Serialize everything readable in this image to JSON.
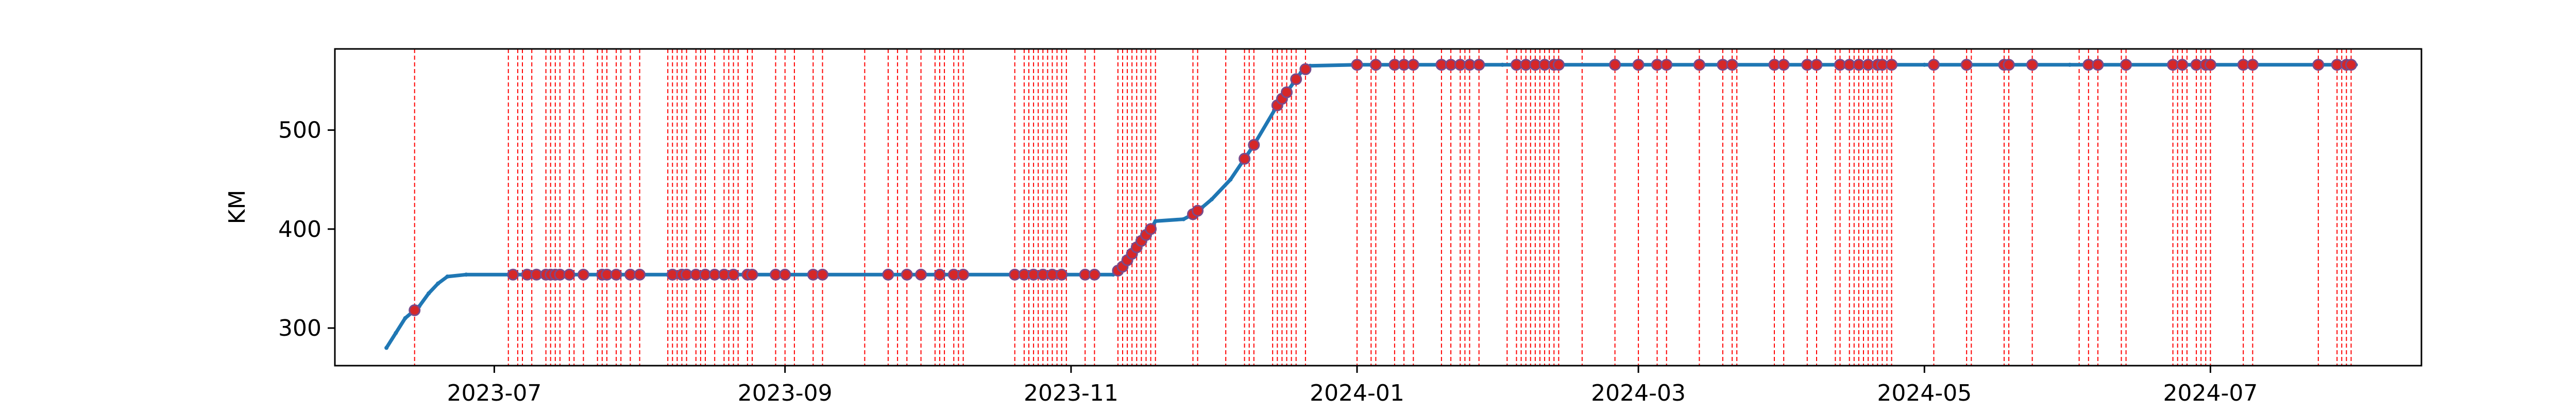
{
  "chart_data": {
    "type": "line",
    "title": "",
    "xlabel": "",
    "ylabel": "KM",
    "x_axis_type": "date",
    "xlim": [
      "2023-05-28",
      "2024-08-15"
    ],
    "ylim": [
      262,
      582
    ],
    "x_ticks": [
      {
        "date": "2023-07-01",
        "label": "2023-07"
      },
      {
        "date": "2023-09-01",
        "label": "2023-09"
      },
      {
        "date": "2023-11-01",
        "label": "2023-11"
      },
      {
        "date": "2024-01-01",
        "label": "2024-01"
      },
      {
        "date": "2024-03-01",
        "label": "2024-03"
      },
      {
        "date": "2024-05-01",
        "label": "2024-05"
      },
      {
        "date": "2024-07-01",
        "label": "2024-07"
      }
    ],
    "y_ticks": [
      300,
      400,
      500
    ],
    "grid": false,
    "colors": {
      "line": "#1f77b4",
      "marker": "#d62728",
      "vline": "#ff0000",
      "marker_edge": "#7a4a8a"
    },
    "series": [
      {
        "x": [
          "2023-06-08",
          "2023-06-10",
          "2023-06-12",
          "2023-06-15",
          "2023-06-17",
          "2023-06-19",
          "2023-06-21",
          "2023-06-25",
          "2023-07-05",
          "2023-08-01",
          "2023-09-01",
          "2023-10-01",
          "2023-10-25",
          "2023-11-10",
          "2023-11-12",
          "2023-11-14",
          "2023-11-16",
          "2023-11-18",
          "2023-11-19",
          "2023-11-25",
          "2023-11-27",
          "2023-11-29",
          "2023-12-01",
          "2023-12-05",
          "2023-12-10",
          "2023-12-15",
          "2023-12-20",
          "2023-12-22",
          "2024-01-01",
          "2024-02-01",
          "2024-03-01",
          "2024-04-01",
          "2024-05-01",
          "2024-06-01",
          "2024-07-01",
          "2024-08-01"
        ],
        "y": [
          280,
          295,
          310,
          322,
          335,
          345,
          352,
          354,
          354,
          354,
          354,
          354,
          354,
          354,
          362,
          375,
          388,
          400,
          408,
          410,
          415,
          422,
          430,
          450,
          485,
          525,
          558,
          565,
          566,
          566,
          566,
          566,
          566,
          566,
          566,
          566
        ]
      }
    ],
    "event_dates": [
      "2023-06-14",
      "2023-07-04",
      "2023-07-06",
      "2023-07-07",
      "2023-07-09",
      "2023-07-12",
      "2023-07-13",
      "2023-07-14",
      "2023-07-15",
      "2023-07-17",
      "2023-07-18",
      "2023-07-20",
      "2023-07-23",
      "2023-07-24",
      "2023-07-25",
      "2023-07-27",
      "2023-07-28",
      "2023-07-30",
      "2023-08-01",
      "2023-08-07",
      "2023-08-08",
      "2023-08-09",
      "2023-08-10",
      "2023-08-11",
      "2023-08-13",
      "2023-08-14",
      "2023-08-15",
      "2023-08-17",
      "2023-08-19",
      "2023-08-20",
      "2023-08-21",
      "2023-08-22",
      "2023-08-24",
      "2023-08-25",
      "2023-08-30",
      "2023-09-01",
      "2023-09-03",
      "2023-09-07",
      "2023-09-09",
      "2023-09-18",
      "2023-09-23",
      "2023-09-25",
      "2023-09-27",
      "2023-09-30",
      "2023-10-03",
      "2023-10-04",
      "2023-10-05",
      "2023-10-07",
      "2023-10-08",
      "2023-10-09",
      "2023-10-20",
      "2023-10-22",
      "2023-10-23",
      "2023-10-24",
      "2023-10-25",
      "2023-10-26",
      "2023-10-27",
      "2023-10-28",
      "2023-10-29",
      "2023-10-30",
      "2023-10-31",
      "2023-11-04",
      "2023-11-06",
      "2023-11-11",
      "2023-11-12",
      "2023-11-13",
      "2023-11-14",
      "2023-11-15",
      "2023-11-16",
      "2023-11-17",
      "2023-11-18",
      "2023-11-19",
      "2023-11-27",
      "2023-11-28",
      "2023-12-04",
      "2023-12-08",
      "2023-12-09",
      "2023-12-10",
      "2023-12-14",
      "2023-12-15",
      "2023-12-16",
      "2023-12-17",
      "2023-12-18",
      "2023-12-19",
      "2023-12-21",
      "2024-01-01",
      "2024-01-04",
      "2024-01-05",
      "2024-01-09",
      "2024-01-11",
      "2024-01-13",
      "2024-01-19",
      "2024-01-21",
      "2024-01-23",
      "2024-01-24",
      "2024-01-25",
      "2024-01-27",
      "2024-02-02",
      "2024-02-04",
      "2024-02-05",
      "2024-02-06",
      "2024-02-07",
      "2024-02-08",
      "2024-02-09",
      "2024-02-10",
      "2024-02-11",
      "2024-02-12",
      "2024-02-13",
      "2024-02-18",
      "2024-02-25",
      "2024-03-01",
      "2024-03-05",
      "2024-03-07",
      "2024-03-14",
      "2024-03-19",
      "2024-03-21",
      "2024-03-22",
      "2024-03-30",
      "2024-04-01",
      "2024-04-06",
      "2024-04-08",
      "2024-04-12",
      "2024-04-13",
      "2024-04-15",
      "2024-04-16",
      "2024-04-17",
      "2024-04-18",
      "2024-04-19",
      "2024-04-20",
      "2024-04-21",
      "2024-04-22",
      "2024-04-23",
      "2024-04-24",
      "2024-05-03",
      "2024-05-10",
      "2024-05-11",
      "2024-05-18",
      "2024-05-19",
      "2024-05-24",
      "2024-06-03",
      "2024-06-05",
      "2024-06-07",
      "2024-06-12",
      "2024-06-13",
      "2024-06-23",
      "2024-06-24",
      "2024-06-25",
      "2024-06-26",
      "2024-06-28",
      "2024-06-29",
      "2024-06-30",
      "2024-07-01",
      "2024-07-08",
      "2024-07-10",
      "2024-07-24",
      "2024-07-28",
      "2024-07-29",
      "2024-07-30",
      "2024-07-31"
    ],
    "marker_dates": [
      "2023-06-14",
      "2023-07-05",
      "2023-07-08",
      "2023-07-10",
      "2023-07-12",
      "2023-07-13",
      "2023-07-14",
      "2023-07-15",
      "2023-07-17",
      "2023-07-20",
      "2023-07-24",
      "2023-07-25",
      "2023-07-27",
      "2023-07-30",
      "2023-08-01",
      "2023-08-08",
      "2023-08-10",
      "2023-08-11",
      "2023-08-13",
      "2023-08-15",
      "2023-08-17",
      "2023-08-19",
      "2023-08-21",
      "2023-08-24",
      "2023-08-25",
      "2023-08-30",
      "2023-09-01",
      "2023-09-07",
      "2023-09-09",
      "2023-09-23",
      "2023-09-27",
      "2023-09-30",
      "2023-10-04",
      "2023-10-07",
      "2023-10-09",
      "2023-10-20",
      "2023-10-22",
      "2023-10-24",
      "2023-10-26",
      "2023-10-28",
      "2023-10-30",
      "2023-11-04",
      "2023-11-06",
      "2023-11-11",
      "2023-11-12",
      "2023-11-13",
      "2023-11-14",
      "2023-11-15",
      "2023-11-16",
      "2023-11-17",
      "2023-11-18",
      "2023-11-27",
      "2023-11-28",
      "2023-12-08",
      "2023-12-10",
      "2023-12-15",
      "2023-12-16",
      "2023-12-17",
      "2023-12-19",
      "2023-12-21",
      "2024-01-01",
      "2024-01-05",
      "2024-01-09",
      "2024-01-11",
      "2024-01-13",
      "2024-01-19",
      "2024-01-21",
      "2024-01-23",
      "2024-01-25",
      "2024-01-27",
      "2024-02-04",
      "2024-02-06",
      "2024-02-08",
      "2024-02-10",
      "2024-02-12",
      "2024-02-13",
      "2024-02-25",
      "2024-03-01",
      "2024-03-05",
      "2024-03-07",
      "2024-03-14",
      "2024-03-19",
      "2024-03-21",
      "2024-03-30",
      "2024-04-01",
      "2024-04-06",
      "2024-04-08",
      "2024-04-13",
      "2024-04-15",
      "2024-04-17",
      "2024-04-19",
      "2024-04-21",
      "2024-04-22",
      "2024-04-24",
      "2024-05-03",
      "2024-05-10",
      "2024-05-18",
      "2024-05-19",
      "2024-05-24",
      "2024-06-05",
      "2024-06-07",
      "2024-06-13",
      "2024-06-23",
      "2024-06-25",
      "2024-06-28",
      "2024-06-30",
      "2024-07-01",
      "2024-07-08",
      "2024-07-10",
      "2024-07-24",
      "2024-07-28",
      "2024-07-30",
      "2024-07-31"
    ]
  }
}
